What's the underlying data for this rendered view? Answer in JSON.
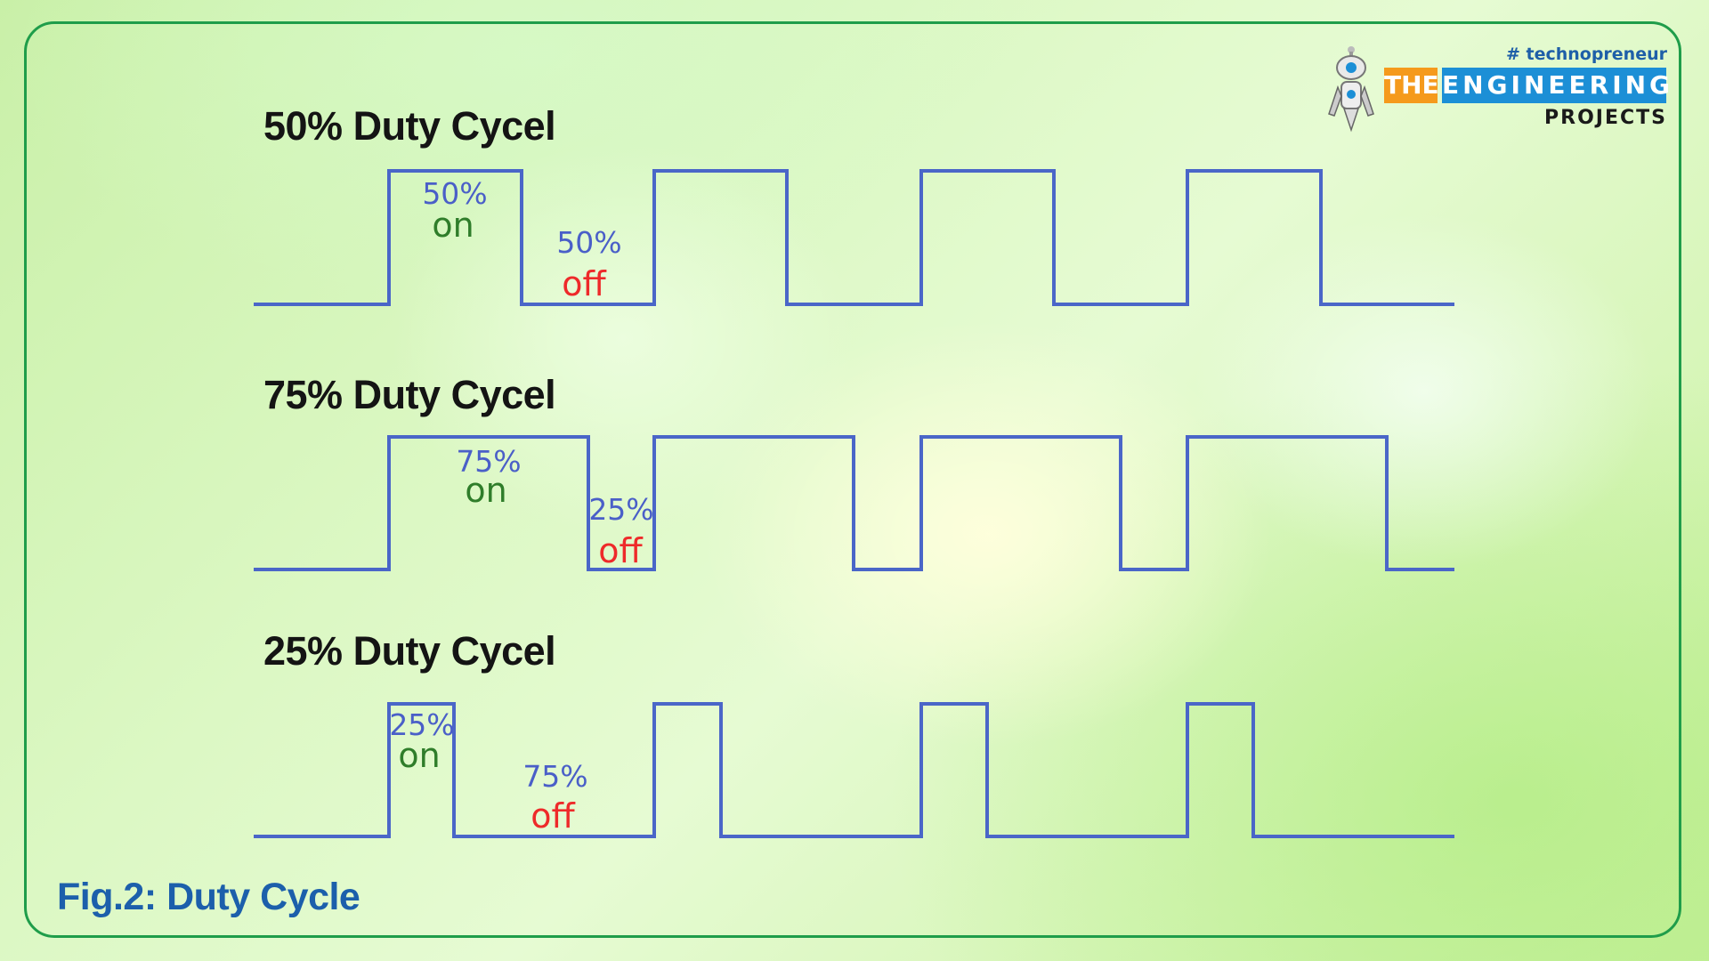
{
  "logo": {
    "tagline": "# technopreneur",
    "word1": "THE",
    "word2": "ENGINEERING",
    "word3": "PROJECTS",
    "colors": {
      "orange": "#f59a1c",
      "blue": "#1c8fd6",
      "tag": "#1e5fa8"
    }
  },
  "panels": [
    {
      "title": "50% Duty Cycel",
      "on_percent": "50%",
      "on_text": "on",
      "off_percent": "50%",
      "off_text": "off",
      "duty_fraction": 0.5
    },
    {
      "title": "75% Duty Cycel",
      "on_percent": "75%",
      "on_text": "on",
      "off_percent": "25%",
      "off_text": "off",
      "duty_fraction": 0.75
    },
    {
      "title": "25% Duty Cycel",
      "on_percent": "25%",
      "on_text": "on",
      "off_percent": "75%",
      "off_text": "off",
      "duty_fraction": 0.25
    }
  ],
  "caption": "Fig.2: Duty Cycle",
  "colors": {
    "wave": "#4a66c8",
    "percent_label": "#4a5fc8",
    "on_label": "#2f7d2a",
    "off_label": "#ee2a2a",
    "border": "#1f9d4a",
    "caption": "#1c5fab"
  }
}
